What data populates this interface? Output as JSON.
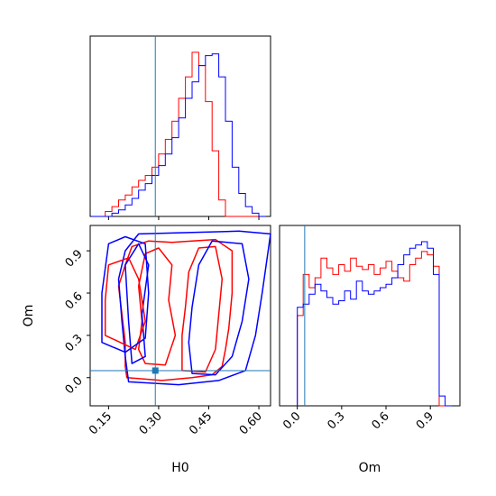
{
  "chart_data": {
    "type": "corner",
    "parameters": [
      "H0",
      "Om"
    ],
    "truth": {
      "H0": 0.29,
      "Om": 0.05
    },
    "colors": {
      "red": "#ff0000",
      "blue": "#0000ff",
      "truth": "#1f77b4"
    },
    "panels": {
      "h0_hist": {
        "xlim": [
          0.095,
          0.635
        ],
        "bin_edges": [
          0.1,
          0.12,
          0.14,
          0.16,
          0.18,
          0.2,
          0.22,
          0.24,
          0.26,
          0.28,
          0.3,
          0.32,
          0.34,
          0.36,
          0.38,
          0.4,
          0.42,
          0.44,
          0.46,
          0.48,
          0.5,
          0.52,
          0.54,
          0.56,
          0.58,
          0.6,
          0.62
        ],
        "series": [
          {
            "color": "red",
            "counts": [
              0,
              0,
              0.03,
              0.06,
              0.1,
              0.13,
              0.18,
              0.22,
              0.25,
              0.3,
              0.38,
              0.47,
              0.58,
              0.72,
              0.85,
              1.0,
              0.92,
              0.7,
              0.4,
              0.1,
              0,
              0,
              0,
              0,
              0,
              0
            ]
          },
          {
            "color": "blue",
            "counts": [
              0,
              0,
              0,
              0.02,
              0.04,
              0.07,
              0.11,
              0.16,
              0.2,
              0.25,
              0.31,
              0.38,
              0.48,
              0.6,
              0.72,
              0.82,
              0.92,
              0.98,
              0.99,
              0.85,
              0.58,
              0.3,
              0.14,
              0.06,
              0.02,
              0
            ]
          }
        ]
      },
      "contour": {
        "xlim": [
          0.095,
          0.635
        ],
        "ylim": [
          -0.2,
          1.08
        ],
        "xticks": [
          0.15,
          0.3,
          0.45,
          0.6
        ],
        "xtick_labels": [
          "0.15",
          "0.30",
          "0.45",
          "0.60"
        ],
        "yticks": [
          0.0,
          0.3,
          0.6,
          0.9
        ],
        "ytick_labels": [
          "0.0",
          "0.3",
          "0.6",
          "0.9"
        ],
        "xlabel": "H0",
        "ylabel": "Om",
        "contours": [
          {
            "color": "red",
            "points": [
              [
                0.205,
                0.0
              ],
              [
                0.31,
                -0.02
              ],
              [
                0.4,
                0.0
              ],
              [
                0.46,
                0.02
              ],
              [
                0.49,
                0.08
              ],
              [
                0.5,
                0.2
              ],
              [
                0.51,
                0.35
              ],
              [
                0.52,
                0.6
              ],
              [
                0.52,
                0.9
              ],
              [
                0.47,
                0.98
              ],
              [
                0.4,
                0.97
              ],
              [
                0.34,
                0.96
              ],
              [
                0.27,
                0.97
              ],
              [
                0.22,
                0.93
              ],
              [
                0.2,
                0.8
              ],
              [
                0.18,
                0.65
              ],
              [
                0.19,
                0.45
              ],
              [
                0.2,
                0.25
              ],
              [
                0.2,
                0.08
              ]
            ]
          },
          {
            "color": "red",
            "points": [
              [
                0.26,
                0.1
              ],
              [
                0.32,
                0.09
              ],
              [
                0.35,
                0.3
              ],
              [
                0.33,
                0.55
              ],
              [
                0.34,
                0.8
              ],
              [
                0.3,
                0.92
              ],
              [
                0.26,
                0.88
              ],
              [
                0.24,
                0.65
              ],
              [
                0.25,
                0.4
              ],
              [
                0.24,
                0.2
              ]
            ]
          },
          {
            "color": "red",
            "points": [
              [
                0.37,
                0.05
              ],
              [
                0.44,
                0.04
              ],
              [
                0.47,
                0.2
              ],
              [
                0.48,
                0.45
              ],
              [
                0.49,
                0.7
              ],
              [
                0.47,
                0.93
              ],
              [
                0.42,
                0.92
              ],
              [
                0.39,
                0.75
              ],
              [
                0.38,
                0.5
              ],
              [
                0.37,
                0.3
              ]
            ]
          },
          {
            "color": "blue",
            "points": [
              [
                0.21,
                -0.03
              ],
              [
                0.36,
                -0.05
              ],
              [
                0.48,
                -0.02
              ],
              [
                0.56,
                0.05
              ],
              [
                0.59,
                0.3
              ],
              [
                0.61,
                0.6
              ],
              [
                0.635,
                1.02
              ],
              [
                0.54,
                1.04
              ],
              [
                0.4,
                1.03
              ],
              [
                0.24,
                1.02
              ],
              [
                0.2,
                0.9
              ],
              [
                0.18,
                0.7
              ],
              [
                0.19,
                0.4
              ],
              [
                0.2,
                0.15
              ]
            ]
          },
          {
            "color": "blue",
            "points": [
              [
                0.4,
                0.03
              ],
              [
                0.47,
                0.02
              ],
              [
                0.52,
                0.15
              ],
              [
                0.55,
                0.4
              ],
              [
                0.57,
                0.7
              ],
              [
                0.55,
                0.95
              ],
              [
                0.46,
                0.97
              ],
              [
                0.42,
                0.8
              ],
              [
                0.4,
                0.5
              ],
              [
                0.39,
                0.25
              ]
            ]
          },
          {
            "color": "blue",
            "points": [
              [
                0.22,
                0.1
              ],
              [
                0.26,
                0.15
              ],
              [
                0.25,
                0.45
              ],
              [
                0.27,
                0.8
              ],
              [
                0.24,
                0.95
              ],
              [
                0.2,
                0.8
              ],
              [
                0.21,
                0.4
              ]
            ]
          },
          {
            "color": "red",
            "points": [
              [
                0.14,
                0.3
              ],
              [
                0.23,
                0.2
              ],
              [
                0.26,
                0.4
              ],
              [
                0.24,
                0.7
              ],
              [
                0.21,
                0.85
              ],
              [
                0.15,
                0.8
              ],
              [
                0.14,
                0.55
              ]
            ]
          },
          {
            "color": "blue",
            "points": [
              [
                0.13,
                0.25
              ],
              [
                0.2,
                0.18
              ],
              [
                0.26,
                0.28
              ],
              [
                0.27,
                0.6
              ],
              [
                0.26,
                0.95
              ],
              [
                0.2,
                1.0
              ],
              [
                0.15,
                0.95
              ],
              [
                0.13,
                0.6
              ]
            ]
          }
        ]
      },
      "om_hist": {
        "xlim": [
          -0.12,
          1.1
        ],
        "xticks": [
          0.0,
          0.3,
          0.6,
          0.9
        ],
        "xtick_labels": [
          "0.0",
          "0.3",
          "0.6",
          "0.9"
        ],
        "xlabel": "Om",
        "bin_edges": [
          0.0,
          0.04,
          0.08,
          0.12,
          0.16,
          0.2,
          0.24,
          0.28,
          0.32,
          0.36,
          0.4,
          0.44,
          0.48,
          0.52,
          0.56,
          0.6,
          0.64,
          0.68,
          0.72,
          0.76,
          0.8,
          0.84,
          0.88,
          0.92,
          0.96,
          1.0,
          1.04
        ],
        "series": [
          {
            "color": "red",
            "counts": [
              0.55,
              0.8,
              0.72,
              0.78,
              0.9,
              0.84,
              0.8,
              0.86,
              0.82,
              0.9,
              0.85,
              0.83,
              0.86,
              0.8,
              0.84,
              0.88,
              0.82,
              0.78,
              0.76,
              0.86,
              0.9,
              0.94,
              0.92,
              0.85,
              0,
              0
            ]
          },
          {
            "color": "blue",
            "counts": [
              0.6,
              0.62,
              0.68,
              0.74,
              0.7,
              0.66,
              0.62,
              0.64,
              0.7,
              0.65,
              0.76,
              0.7,
              0.68,
              0.7,
              0.72,
              0.74,
              0.78,
              0.86,
              0.92,
              0.96,
              0.98,
              1.0,
              0.96,
              0.8,
              0.06,
              0
            ]
          }
        ]
      }
    }
  }
}
